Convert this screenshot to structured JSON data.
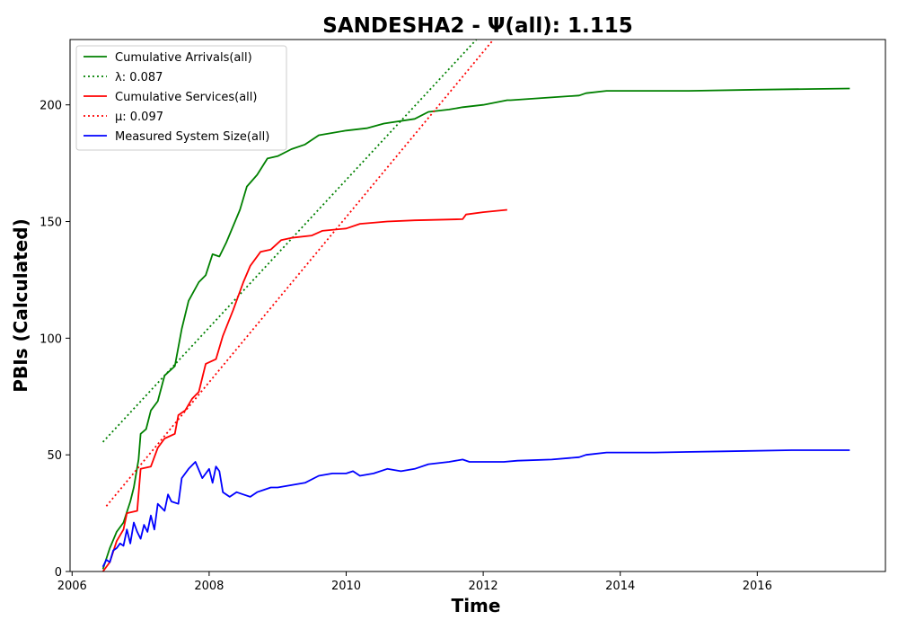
{
  "chart_data": {
    "type": "line",
    "title": "SANDESHA2 -  Ψ(all): 1.115",
    "xlabel": "Time",
    "ylabel": "PBIs (Calculated)",
    "xlim": [
      2005.97,
      2017.87
    ],
    "ylim": [
      0,
      228
    ],
    "xticks": [
      2006,
      2008,
      2010,
      2012,
      2014,
      2016
    ],
    "yticks": [
      0,
      50,
      100,
      150,
      200
    ],
    "grid": false,
    "legend_position": "top-left",
    "series": [
      {
        "name": "Cumulative Arrivals(all)",
        "color": "#008000",
        "style": "solid",
        "points": [
          [
            2006.45,
            1
          ],
          [
            2006.55,
            10
          ],
          [
            2006.65,
            17
          ],
          [
            2006.75,
            21
          ],
          [
            2006.85,
            30
          ],
          [
            2006.9,
            36
          ],
          [
            2006.97,
            48
          ],
          [
            2007.0,
            59
          ],
          [
            2007.08,
            61
          ],
          [
            2007.15,
            69
          ],
          [
            2007.25,
            73
          ],
          [
            2007.35,
            84
          ],
          [
            2007.5,
            88
          ],
          [
            2007.6,
            104
          ],
          [
            2007.7,
            116
          ],
          [
            2007.85,
            124
          ],
          [
            2007.95,
            127
          ],
          [
            2008.05,
            136
          ],
          [
            2008.15,
            135
          ],
          [
            2008.25,
            141
          ],
          [
            2008.45,
            155
          ],
          [
            2008.55,
            165
          ],
          [
            2008.7,
            170
          ],
          [
            2008.85,
            177
          ],
          [
            2009.0,
            178
          ],
          [
            2009.2,
            181
          ],
          [
            2009.4,
            183
          ],
          [
            2009.6,
            187
          ],
          [
            2010.0,
            189
          ],
          [
            2010.3,
            190
          ],
          [
            2010.55,
            192
          ],
          [
            2011.0,
            194
          ],
          [
            2011.2,
            197
          ],
          [
            2011.5,
            198
          ],
          [
            2011.7,
            199
          ],
          [
            2012.0,
            200
          ],
          [
            2012.35,
            202
          ],
          [
            2012.4,
            202
          ],
          [
            2013.4,
            204
          ],
          [
            2013.5,
            205
          ],
          [
            2013.8,
            206
          ],
          [
            2015.0,
            206
          ],
          [
            2016.0,
            206.5
          ],
          [
            2017.35,
            207
          ]
        ]
      },
      {
        "name": "λ: 0.087",
        "color": "#008000",
        "style": "dotted",
        "points": [
          [
            2006.45,
            55.5
          ],
          [
            2011.9,
            228
          ]
        ]
      },
      {
        "name": "Cumulative Services(all)",
        "color": "#ff0000",
        "style": "solid",
        "points": [
          [
            2006.45,
            0
          ],
          [
            2006.55,
            4
          ],
          [
            2006.65,
            13
          ],
          [
            2006.75,
            18
          ],
          [
            2006.8,
            25
          ],
          [
            2006.95,
            26
          ],
          [
            2007.0,
            44
          ],
          [
            2007.15,
            45
          ],
          [
            2007.25,
            53
          ],
          [
            2007.35,
            57
          ],
          [
            2007.5,
            59
          ],
          [
            2007.55,
            67
          ],
          [
            2007.65,
            69
          ],
          [
            2007.75,
            74
          ],
          [
            2007.85,
            77
          ],
          [
            2007.95,
            89
          ],
          [
            2008.1,
            91
          ],
          [
            2008.2,
            101
          ],
          [
            2008.35,
            112
          ],
          [
            2008.5,
            124
          ],
          [
            2008.6,
            131
          ],
          [
            2008.75,
            137
          ],
          [
            2008.9,
            138
          ],
          [
            2009.05,
            142
          ],
          [
            2009.2,
            143
          ],
          [
            2009.5,
            144
          ],
          [
            2009.65,
            146
          ],
          [
            2010.0,
            147
          ],
          [
            2010.2,
            149
          ],
          [
            2010.6,
            150
          ],
          [
            2011.0,
            150.5
          ],
          [
            2011.7,
            151
          ],
          [
            2011.75,
            153
          ],
          [
            2012.0,
            154
          ],
          [
            2012.35,
            155
          ]
        ]
      },
      {
        "name": "μ: 0.097",
        "color": "#ff0000",
        "style": "dotted",
        "points": [
          [
            2006.5,
            28
          ],
          [
            2012.15,
            228
          ]
        ]
      },
      {
        "name": "Measured System Size(all)",
        "color": "#0000ff",
        "style": "solid",
        "points": [
          [
            2006.45,
            2
          ],
          [
            2006.5,
            5
          ],
          [
            2006.55,
            4
          ],
          [
            2006.6,
            9
          ],
          [
            2006.65,
            10
          ],
          [
            2006.7,
            12
          ],
          [
            2006.75,
            11
          ],
          [
            2006.8,
            18
          ],
          [
            2006.85,
            12
          ],
          [
            2006.9,
            21
          ],
          [
            2006.95,
            17
          ],
          [
            2007.0,
            14
          ],
          [
            2007.05,
            20
          ],
          [
            2007.1,
            17
          ],
          [
            2007.15,
            24
          ],
          [
            2007.2,
            18
          ],
          [
            2007.25,
            29
          ],
          [
            2007.35,
            26
          ],
          [
            2007.4,
            33
          ],
          [
            2007.45,
            30
          ],
          [
            2007.55,
            29
          ],
          [
            2007.6,
            40
          ],
          [
            2007.7,
            44
          ],
          [
            2007.8,
            47
          ],
          [
            2007.9,
            40
          ],
          [
            2008.0,
            44
          ],
          [
            2008.05,
            38
          ],
          [
            2008.1,
            45
          ],
          [
            2008.15,
            43
          ],
          [
            2008.2,
            34
          ],
          [
            2008.3,
            32
          ],
          [
            2008.4,
            34
          ],
          [
            2008.5,
            33
          ],
          [
            2008.6,
            32
          ],
          [
            2008.7,
            34
          ],
          [
            2008.8,
            35
          ],
          [
            2008.9,
            36
          ],
          [
            2009.0,
            36
          ],
          [
            2009.2,
            37
          ],
          [
            2009.4,
            38
          ],
          [
            2009.6,
            41
          ],
          [
            2009.8,
            42
          ],
          [
            2010.0,
            42
          ],
          [
            2010.1,
            43
          ],
          [
            2010.2,
            41
          ],
          [
            2010.4,
            42
          ],
          [
            2010.6,
            44
          ],
          [
            2010.8,
            43
          ],
          [
            2011.0,
            44
          ],
          [
            2011.2,
            46
          ],
          [
            2011.5,
            47
          ],
          [
            2011.7,
            48
          ],
          [
            2011.8,
            47
          ],
          [
            2012.0,
            47
          ],
          [
            2012.3,
            47
          ],
          [
            2012.5,
            47.5
          ],
          [
            2013.0,
            48
          ],
          [
            2013.4,
            49
          ],
          [
            2013.5,
            50
          ],
          [
            2013.8,
            51
          ],
          [
            2014.5,
            51
          ],
          [
            2015.5,
            51.5
          ],
          [
            2016.5,
            52
          ],
          [
            2017.35,
            52
          ]
        ]
      }
    ]
  }
}
